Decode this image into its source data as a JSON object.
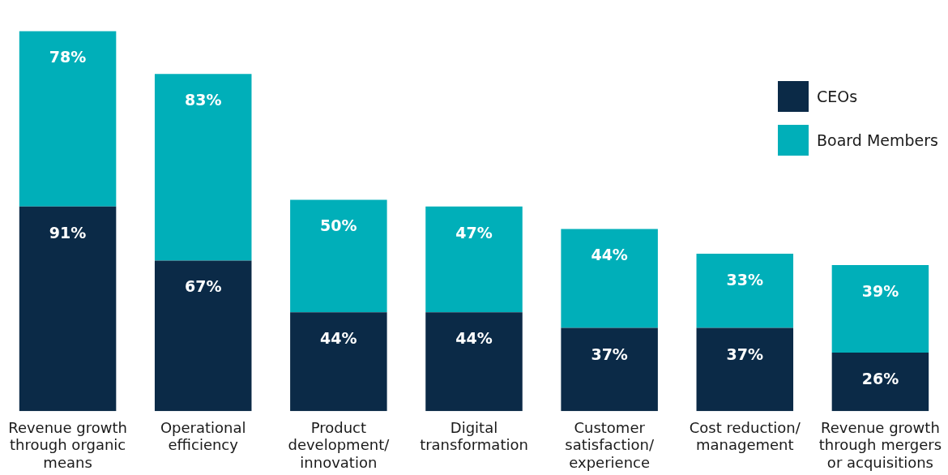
{
  "chart_data": {
    "type": "bar",
    "stacked": true,
    "legend": "top right",
    "categories": [
      "Revenue growth through organic means",
      "Operational efficiency",
      "Product development/ innovation",
      "Digital transformation",
      "Customer satisfaction/ experience",
      "Cost reduction/ management",
      "Revenue growth through mergers or acquisitions"
    ],
    "series": [
      {
        "name": "CEOs",
        "color": "#0b2a47",
        "values": [
          91,
          67,
          44,
          44,
          37,
          37,
          26
        ],
        "value_labels": [
          "91%",
          "67%",
          "44%",
          "44%",
          "37%",
          "37%",
          "26%"
        ]
      },
      {
        "name": "Board Members",
        "color": "#00afb9",
        "values": [
          78,
          83,
          50,
          47,
          44,
          33,
          39
        ],
        "value_labels": [
          "78%",
          "83%",
          "50%",
          "47%",
          "44%",
          "33%",
          "39%"
        ]
      }
    ]
  }
}
